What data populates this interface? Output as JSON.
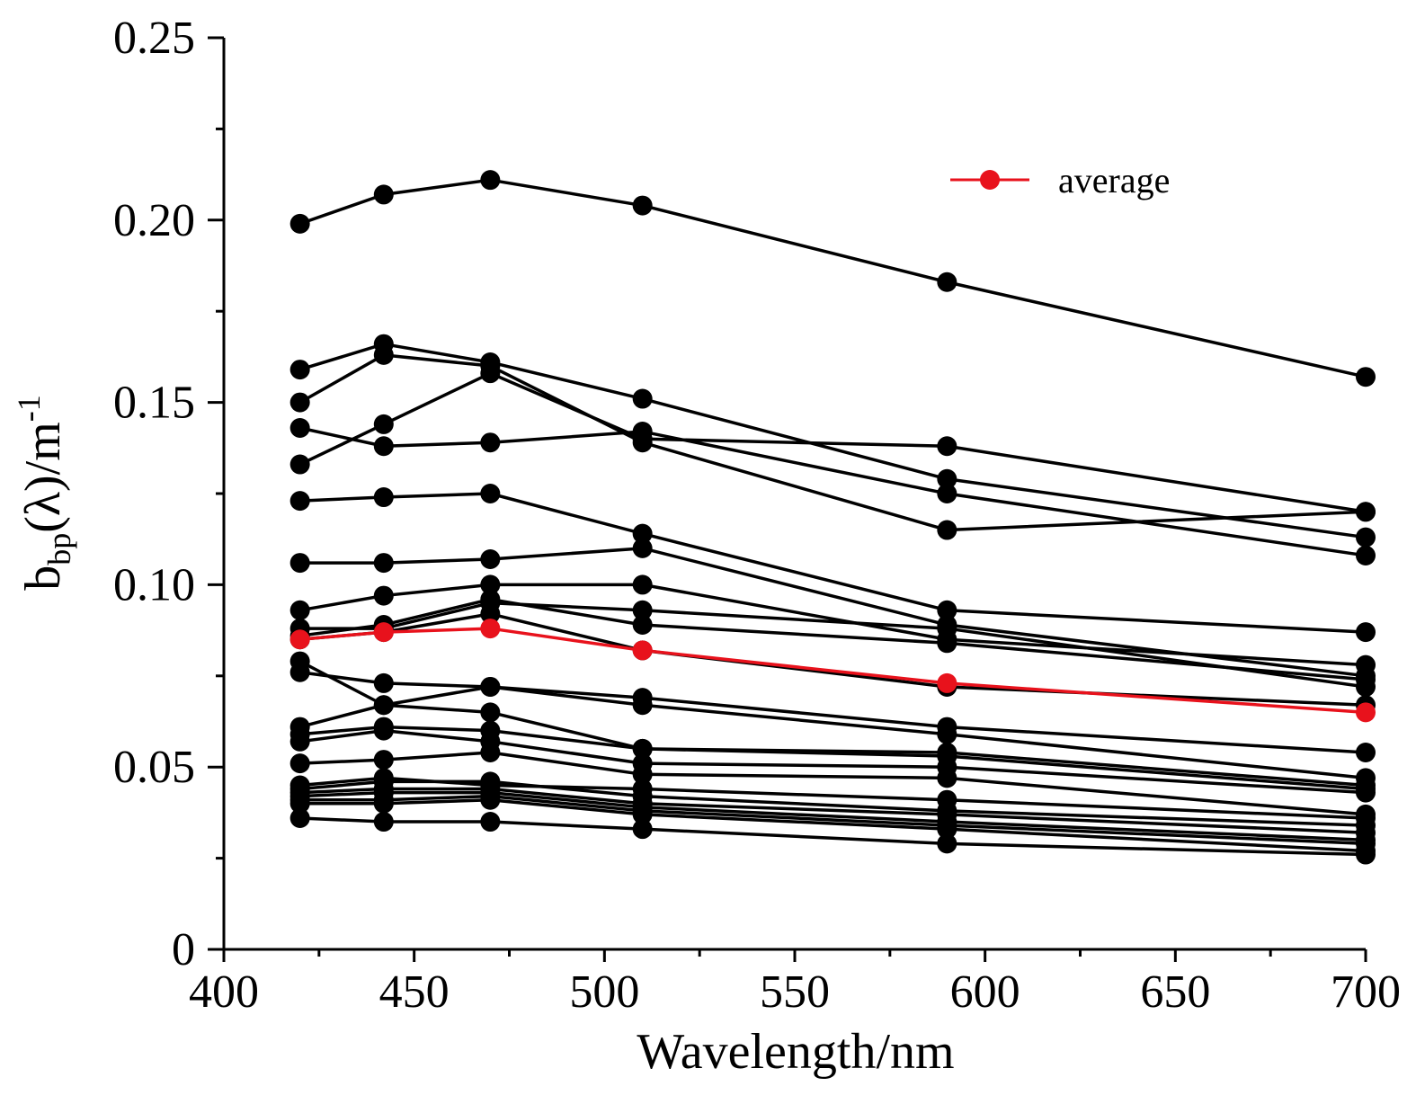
{
  "chart_data": {
    "type": "line",
    "xlabel": "Wavelength/nm",
    "ylabel": {
      "main": "b",
      "sub": "bp",
      "mid": "(λ)/m",
      "sup": "-1"
    },
    "xlim": [
      400,
      700
    ],
    "ylim": [
      0,
      0.25
    ],
    "xticks": [
      "400",
      "450",
      "500",
      "550",
      "600",
      "650",
      "700"
    ],
    "yticks": [
      "0",
      "0.05",
      "0.10",
      "0.15",
      "0.20",
      "0.25"
    ],
    "grid": false,
    "legend_position": "top-right",
    "x": [
      420,
      442,
      470,
      510,
      590,
      700
    ],
    "series": [
      {
        "values": [
          0.199,
          0.207,
          0.211,
          0.204,
          0.183,
          0.157
        ]
      },
      {
        "values": [
          0.159,
          0.166,
          0.161,
          0.151,
          0.129,
          0.113
        ]
      },
      {
        "values": [
          0.15,
          0.163,
          0.16,
          0.139,
          0.115,
          0.12
        ]
      },
      {
        "values": [
          0.143,
          0.138,
          0.139,
          0.142,
          0.125,
          0.108
        ]
      },
      {
        "values": [
          0.133,
          0.144,
          0.158,
          0.14,
          0.138,
          0.12
        ]
      },
      {
        "values": [
          0.123,
          0.124,
          0.125,
          0.114,
          0.093,
          0.087
        ]
      },
      {
        "values": [
          0.106,
          0.106,
          0.107,
          0.11,
          0.089,
          0.075
        ]
      },
      {
        "values": [
          0.093,
          0.097,
          0.1,
          0.1,
          0.085,
          0.078
        ]
      },
      {
        "values": [
          0.088,
          0.088,
          0.095,
          0.093,
          0.088,
          0.072
        ]
      },
      {
        "values": [
          0.086,
          0.089,
          0.096,
          0.089,
          0.084,
          0.074
        ]
      },
      {
        "values": [
          0.085,
          0.087,
          0.092,
          0.082,
          0.072,
          0.067
        ]
      },
      {
        "values": [
          0.079,
          0.067,
          0.072,
          0.069,
          0.061,
          0.054
        ]
      },
      {
        "values": [
          0.076,
          0.073,
          0.072,
          0.067,
          0.059,
          0.047
        ]
      },
      {
        "values": [
          0.061,
          0.067,
          0.065,
          0.055,
          0.054,
          0.045
        ]
      },
      {
        "values": [
          0.059,
          0.061,
          0.06,
          0.055,
          0.053,
          0.044
        ]
      },
      {
        "values": [
          0.057,
          0.06,
          0.057,
          0.051,
          0.05,
          0.043
        ]
      },
      {
        "values": [
          0.051,
          0.052,
          0.054,
          0.048,
          0.047,
          0.037
        ]
      },
      {
        "values": [
          0.045,
          0.047,
          0.045,
          0.044,
          0.041,
          0.036
        ]
      },
      {
        "values": [
          0.044,
          0.046,
          0.046,
          0.042,
          0.038,
          0.034
        ]
      },
      {
        "values": [
          0.043,
          0.044,
          0.044,
          0.04,
          0.037,
          0.032
        ]
      },
      {
        "values": [
          0.042,
          0.043,
          0.043,
          0.039,
          0.035,
          0.03
        ]
      },
      {
        "values": [
          0.041,
          0.041,
          0.042,
          0.038,
          0.034,
          0.029
        ]
      },
      {
        "values": [
          0.04,
          0.04,
          0.041,
          0.037,
          0.033,
          0.027
        ]
      },
      {
        "values": [
          0.036,
          0.035,
          0.035,
          0.033,
          0.029,
          0.026
        ]
      },
      {
        "name": "average",
        "highlight": true,
        "values": [
          0.085,
          0.087,
          0.088,
          0.082,
          0.073,
          0.065
        ]
      }
    ],
    "colors": {
      "series": "#000000",
      "average": "#e8121c"
    }
  }
}
